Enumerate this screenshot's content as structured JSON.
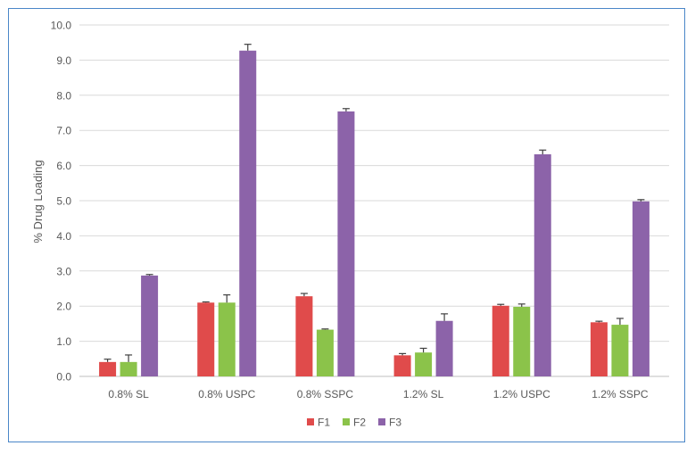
{
  "chart_data": {
    "type": "bar",
    "title": "",
    "xlabel": "",
    "ylabel": "% Drug Loading",
    "ylim": [
      0,
      10
    ],
    "yticks": [
      "0.0",
      "1.0",
      "2.0",
      "3.0",
      "4.0",
      "5.0",
      "6.0",
      "7.0",
      "8.0",
      "9.0",
      "10.0"
    ],
    "grid": true,
    "legend_position": "bottom",
    "categories": [
      "0.8% SL",
      "0.8% USPC",
      "0.8% SSPC",
      "1.2% SL",
      "1.2% USPC",
      "1.2% SSPC"
    ],
    "series": [
      {
        "name": "F1",
        "color": "#e04b4b",
        "values": [
          0.41,
          2.1,
          2.28,
          0.6,
          2.01,
          1.54
        ],
        "errors": [
          0.08,
          0.02,
          0.08,
          0.05,
          0.04,
          0.03
        ]
      },
      {
        "name": "F2",
        "color": "#8bc34a",
        "values": [
          0.41,
          2.1,
          1.33,
          0.68,
          1.98,
          1.47
        ],
        "errors": [
          0.2,
          0.22,
          0.02,
          0.12,
          0.08,
          0.18
        ]
      },
      {
        "name": "F3",
        "color": "#8c63a9",
        "values": [
          2.87,
          9.27,
          7.54,
          1.58,
          6.32,
          4.98
        ],
        "errors": [
          0.03,
          0.18,
          0.08,
          0.2,
          0.12,
          0.05
        ]
      }
    ]
  }
}
